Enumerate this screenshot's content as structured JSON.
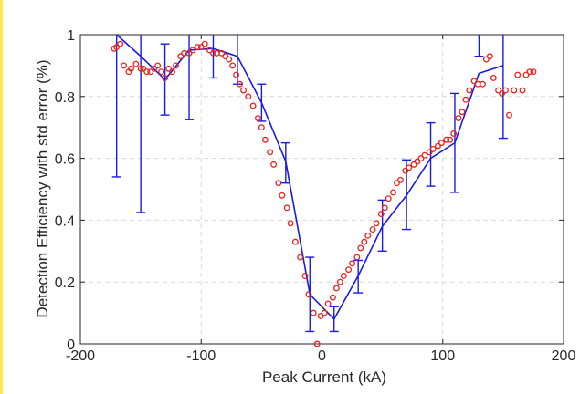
{
  "chart_data": {
    "type": "scatter",
    "xlabel": "Peak Current (kA)",
    "ylabel": "Detection Efficiency with std error (%)",
    "xlim": [
      -200,
      200
    ],
    "ylim": [
      0,
      1
    ],
    "xticks": [
      -200,
      -100,
      0,
      100,
      200
    ],
    "yticks": [
      0,
      0.2,
      0.4,
      0.6,
      0.8,
      1
    ],
    "xtick_labels": [
      "-200",
      "-100",
      "0",
      "100",
      "200"
    ],
    "ytick_labels": [
      "0",
      "0.2",
      "0.4",
      "0.6",
      "0.8",
      "1"
    ],
    "grid": true,
    "colors": {
      "points": "#e8231c",
      "line": "#1a1ae6",
      "grid": "#d9d9d9",
      "axis": "#262626",
      "side_rule": "#ffe94a"
    },
    "series": [
      {
        "kind": "points",
        "x": [
          -172,
          -170,
          -167,
          -164,
          -160,
          -158,
          -154,
          -150,
          -148,
          -145,
          -142,
          -139,
          -136,
          -133,
          -130,
          -127,
          -124,
          -121,
          -117,
          -114,
          -110,
          -107,
          -103,
          -100,
          -97,
          -93,
          -90,
          -87,
          -83,
          -80,
          -77,
          -74,
          -71,
          -68,
          -65,
          -61,
          -57,
          -53,
          -50,
          -47,
          -43,
          -40,
          -36,
          -33,
          -29,
          -26,
          -22,
          -18,
          -14,
          -11,
          -7,
          -4,
          -1,
          2,
          5,
          9,
          12,
          15,
          18,
          22,
          25,
          29,
          32,
          35,
          38,
          42,
          45,
          49,
          52,
          55,
          59,
          62,
          65,
          69,
          72,
          76,
          79,
          82,
          85,
          89,
          92,
          96,
          99,
          103,
          106,
          109,
          113,
          116,
          119,
          122,
          126,
          129,
          133,
          136,
          139,
          142,
          146,
          149,
          152,
          155,
          159,
          162,
          166,
          169,
          172,
          175
        ],
        "y": [
          0.955,
          0.96,
          0.97,
          0.9,
          0.88,
          0.89,
          0.905,
          0.89,
          0.89,
          0.88,
          0.88,
          0.89,
          0.9,
          0.88,
          0.86,
          0.89,
          0.88,
          0.9,
          0.93,
          0.94,
          0.94,
          0.95,
          0.96,
          0.96,
          0.97,
          0.95,
          0.94,
          0.94,
          0.94,
          0.93,
          0.92,
          0.9,
          0.87,
          0.84,
          0.82,
          0.8,
          0.77,
          0.73,
          0.7,
          0.66,
          0.62,
          0.58,
          0.52,
          0.48,
          0.44,
          0.39,
          0.33,
          0.28,
          0.22,
          0.16,
          0.1,
          0,
          0.09,
          0.1,
          0.13,
          0.15,
          0.18,
          0.2,
          0.22,
          0.24,
          0.26,
          0.28,
          0.31,
          0.33,
          0.35,
          0.37,
          0.39,
          0.42,
          0.44,
          0.47,
          0.49,
          0.52,
          0.53,
          0.56,
          0.57,
          0.58,
          0.59,
          0.6,
          0.61,
          0.62,
          0.63,
          0.64,
          0.65,
          0.66,
          0.66,
          0.68,
          0.73,
          0.75,
          0.79,
          0.82,
          0.85,
          0.84,
          0.84,
          0.92,
          0.93,
          0.86,
          0.82,
          0.81,
          0.82,
          0.74,
          0.82,
          0.87,
          0.82,
          0.87,
          0.88,
          0.88
        ]
      },
      {
        "kind": "line_with_errorbars",
        "x": [
          -170,
          -150,
          -130,
          -110,
          -90,
          -70,
          -50,
          -30,
          -10,
          10,
          30,
          50,
          70,
          90,
          110,
          130,
          150
        ],
        "y": [
          1.0,
          0.93,
          0.855,
          0.95,
          0.955,
          0.93,
          0.78,
          0.59,
          0.16,
          0.08,
          0.22,
          0.38,
          0.48,
          0.6,
          0.65,
          0.875,
          0.9
        ],
        "err_low": [
          0.54,
          0.425,
          0.74,
          0.725,
          0.86,
          0.84,
          0.72,
          0.52,
          0.04,
          0.04,
          0.165,
          0.3,
          0.37,
          0.51,
          0.49,
          0.93,
          0.665
        ],
        "err_high": [
          1.0,
          1.0,
          0.97,
          1.0,
          1.0,
          1.0,
          0.84,
          0.65,
          0.28,
          0.12,
          0.27,
          0.465,
          0.595,
          0.715,
          0.81,
          1.0,
          1.0
        ]
      }
    ]
  }
}
